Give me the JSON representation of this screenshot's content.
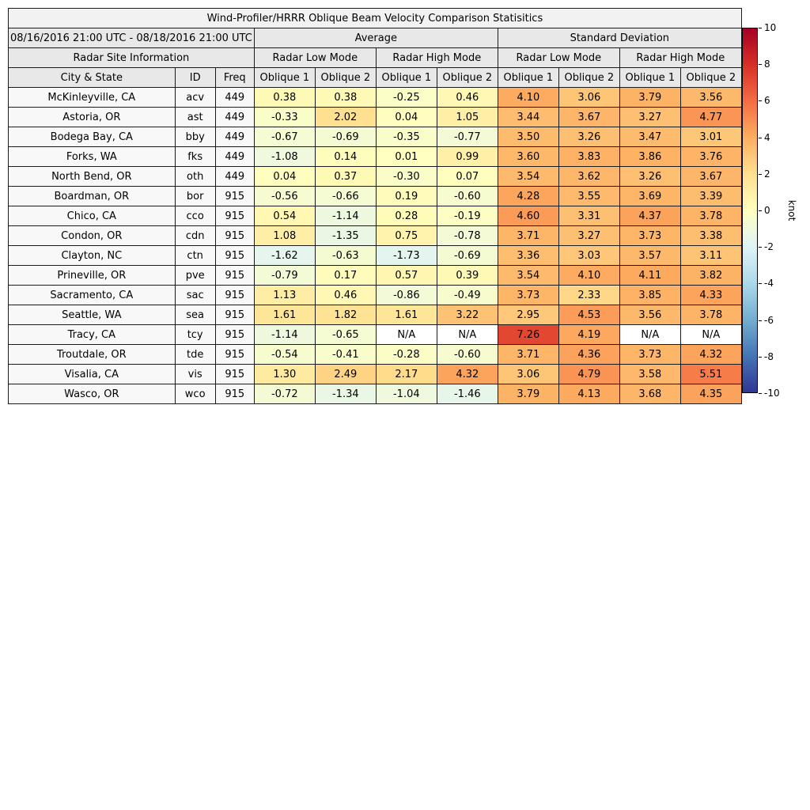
{
  "header": {
    "title": "Wind-Profiler/HRRR Oblique Beam Velocity Comparison Statisitics",
    "period": "08/16/2016 21:00 UTC - 08/18/2016 21:00 UTC",
    "group_average": "Average",
    "group_std": "Standard Deviation",
    "site_info": "Radar Site Information",
    "low_mode": "Radar Low Mode",
    "high_mode": "Radar High Mode",
    "col_city": "City & State",
    "col_id": "ID",
    "col_freq": "Freq",
    "col_oblique1": "Oblique 1",
    "col_oblique2": "Oblique 2"
  },
  "colorbar": {
    "label": "knot",
    "min": -10,
    "max": 10,
    "ticks": [
      "10",
      "8",
      "6",
      "4",
      "2",
      "0",
      "-2",
      "-4",
      "-6",
      "-8",
      "-10"
    ],
    "gradient_colors_low_to_high": [
      "#313695",
      "#4575b4",
      "#74add1",
      "#abd9e9",
      "#e0f3f8",
      "#ffffbf",
      "#fee090",
      "#fdae61",
      "#f46d43",
      "#d73027",
      "#a50026"
    ],
    "na_color": "#ffffff"
  },
  "chart_data": {
    "type": "heatmap",
    "title": "Wind-Profiler/HRRR Oblique Beam Velocity Comparison Statisitics",
    "period": "08/16/2016 21:00 UTC - 08/18/2016 21:00 UTC",
    "value_unit": "knot",
    "value_range": [
      -10,
      10
    ],
    "na_text": "N/A",
    "value_columns": [
      "Average Radar Low Mode Oblique 1",
      "Average Radar Low Mode Oblique 2",
      "Average Radar High Mode Oblique 1",
      "Average Radar High Mode Oblique 2",
      "Standard Deviation Radar Low Mode Oblique 1",
      "Standard Deviation Radar Low Mode Oblique 2",
      "Standard Deviation Radar High Mode Oblique 1",
      "Standard Deviation Radar High Mode Oblique 2"
    ],
    "rows": [
      {
        "city": "McKinleyville, CA",
        "id": "acv",
        "freq": "449",
        "values": [
          "0.38",
          "0.38",
          "-0.25",
          "0.46",
          "4.10",
          "3.06",
          "3.79",
          "3.56"
        ]
      },
      {
        "city": "Astoria, OR",
        "id": "ast",
        "freq": "449",
        "values": [
          "-0.33",
          "2.02",
          "0.04",
          "1.05",
          "3.44",
          "3.67",
          "3.27",
          "4.77"
        ]
      },
      {
        "city": "Bodega Bay, CA",
        "id": "bby",
        "freq": "449",
        "values": [
          "-0.67",
          "-0.69",
          "-0.35",
          "-0.77",
          "3.50",
          "3.26",
          "3.47",
          "3.01"
        ]
      },
      {
        "city": "Forks, WA",
        "id": "fks",
        "freq": "449",
        "values": [
          "-1.08",
          "0.14",
          "0.01",
          "0.99",
          "3.60",
          "3.83",
          "3.86",
          "3.76"
        ]
      },
      {
        "city": "North Bend, OR",
        "id": "oth",
        "freq": "449",
        "values": [
          "0.04",
          "0.37",
          "-0.30",
          "0.07",
          "3.54",
          "3.62",
          "3.26",
          "3.67"
        ]
      },
      {
        "city": "Boardman, OR",
        "id": "bor",
        "freq": "915",
        "values": [
          "-0.56",
          "-0.66",
          "0.19",
          "-0.60",
          "4.28",
          "3.55",
          "3.69",
          "3.39"
        ]
      },
      {
        "city": "Chico, CA",
        "id": "cco",
        "freq": "915",
        "values": [
          "0.54",
          "-1.14",
          "0.28",
          "-0.19",
          "4.60",
          "3.31",
          "4.37",
          "3.78"
        ]
      },
      {
        "city": "Condon, OR",
        "id": "cdn",
        "freq": "915",
        "values": [
          "1.08",
          "-1.35",
          "0.75",
          "-0.78",
          "3.71",
          "3.27",
          "3.73",
          "3.38"
        ]
      },
      {
        "city": "Clayton, NC",
        "id": "ctn",
        "freq": "915",
        "values": [
          "-1.62",
          "-0.63",
          "-1.73",
          "-0.69",
          "3.36",
          "3.03",
          "3.57",
          "3.11"
        ]
      },
      {
        "city": "Prineville, OR",
        "id": "pve",
        "freq": "915",
        "values": [
          "-0.79",
          "0.17",
          "0.57",
          "0.39",
          "3.54",
          "4.10",
          "4.11",
          "3.82"
        ]
      },
      {
        "city": "Sacramento, CA",
        "id": "sac",
        "freq": "915",
        "values": [
          "1.13",
          "0.46",
          "-0.86",
          "-0.49",
          "3.73",
          "2.33",
          "3.85",
          "4.33"
        ]
      },
      {
        "city": "Seattle, WA",
        "id": "sea",
        "freq": "915",
        "values": [
          "1.61",
          "1.82",
          "1.61",
          "3.22",
          "2.95",
          "4.53",
          "3.56",
          "3.78"
        ]
      },
      {
        "city": "Tracy, CA",
        "id": "tcy",
        "freq": "915",
        "values": [
          "-1.14",
          "-0.65",
          "N/A",
          "N/A",
          "7.26",
          "4.19",
          "N/A",
          "N/A"
        ]
      },
      {
        "city": "Troutdale, OR",
        "id": "tde",
        "freq": "915",
        "values": [
          "-0.54",
          "-0.41",
          "-0.28",
          "-0.60",
          "3.71",
          "4.36",
          "3.73",
          "4.32"
        ]
      },
      {
        "city": "Visalia, CA",
        "id": "vis",
        "freq": "915",
        "values": [
          "1.30",
          "2.49",
          "2.17",
          "4.32",
          "3.06",
          "4.79",
          "3.58",
          "5.51"
        ]
      },
      {
        "city": "Wasco, OR",
        "id": "wco",
        "freq": "915",
        "values": [
          "-0.72",
          "-1.34",
          "-1.04",
          "-1.46",
          "3.79",
          "4.13",
          "3.68",
          "4.35"
        ]
      }
    ]
  }
}
